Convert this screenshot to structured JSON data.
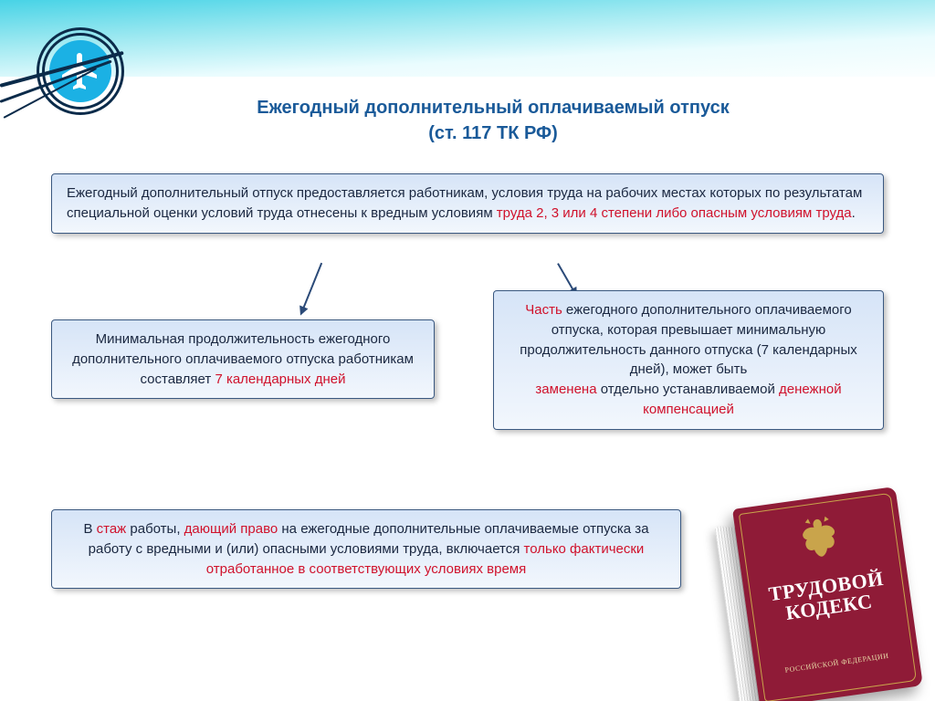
{
  "layout": {
    "background": "#ffffff",
    "header_gradient": [
      "#0fc5df",
      "#9fe9f1",
      "#eafcfe",
      "#ffffff"
    ],
    "box_gradient": [
      "#d6e4f7",
      "#f2f7fd"
    ],
    "box_border": "#3a5880",
    "text_color": "#1a2740",
    "red": "#d0122c",
    "title_color": "#1a5a99",
    "logo_disc": "#1bb1e4",
    "ring_color": "#0b2b4a",
    "arrow_color": "#2b4a78"
  },
  "title": {
    "line1": "Ежегодный дополнительный оплачиваемый отпуск",
    "line2": "(ст. 117 ТК РФ)"
  },
  "box_top": {
    "plain1": "Ежегодный дополнительный отпуск предоставляется работникам, условия труда на рабочих местах которых по результатам специальной оценки условий труда отнесены к вредным условиям ",
    "red1": "труда 2, 3 или 4 степени либо опасным условиям труда",
    "plain2": "."
  },
  "box_left": {
    "plain1": "Минимальная продолжительность ежегодного дополнительного оплачиваемого отпуска работникам составляет ",
    "red1": "7 календарных дней"
  },
  "box_right": {
    "red1": "Часть",
    "plain1": " ежегодного дополнительного оплачиваемого отпуска, которая превышает минимальную продолжительность данного отпуска (7 календарных дней), может быть\n",
    "red2": "заменена",
    "plain2": " отдельно устанавливаемой ",
    "red3": "денежной компенсацией"
  },
  "box_bottom": {
    "plain1": "В ",
    "red1": "стаж",
    "plain2": " работы, ",
    "red2": "дающий право",
    "plain3": " на ежегодные дополнительные оплачиваемые отпуска за работу с вредными и (или) опасными условиями труда, включается ",
    "red3": "только фактически отработанное в соответствующих условиях время"
  },
  "book": {
    "title1": "ТРУДОВОЙ",
    "title2": "КОДЕКС",
    "subtitle": "РОССИЙСКОЙ ФЕДЕРАЦИИ",
    "cover_color": "#8f1b37",
    "gold": "#c9a44b"
  }
}
